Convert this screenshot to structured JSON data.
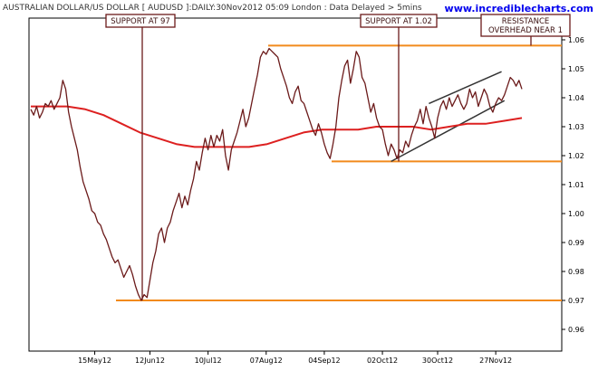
{
  "header": {
    "title": "AUSTRALIAN DOLLAR/US DOLLAR [ AUDUSD ]:DAILY:30Nov2012 05:09 London : Data Delayed > 5mins",
    "site": "www.incrediblecharts.com"
  },
  "chart_data": {
    "type": "line",
    "title": "AUSTRALIAN DOLLAR/US DOLLAR [ AUDUSD ]:DAILY:30Nov2012 05:09 London : Data Delayed > 5mins",
    "xlabel": "",
    "ylabel": "",
    "x_ticks": [
      "15May12",
      "12Jun12",
      "10Jul12",
      "07Aug12",
      "04Sep12",
      "02Oct12",
      "30Oct12",
      "27Nov12"
    ],
    "y_ticks": [
      "0.96",
      "0.97",
      "0.98",
      "0.99",
      "1.00",
      "1.01",
      "1.02",
      "1.03",
      "1.04",
      "1.05",
      "1.06"
    ],
    "ylim": [
      0.9525,
      1.0675
    ],
    "y_axis_position": "right",
    "grid": false,
    "colors": {
      "price": "#6b1a1a",
      "moving_average": "#dd2020",
      "support_resistance": "#f28a1c",
      "channel": "#333333",
      "annotation": "#6b1a1a"
    },
    "series": [
      {
        "name": "",
        "values": [
          1.036,
          1.034,
          1.037,
          1.033,
          1.035,
          1.038,
          1.037,
          1.039,
          1.036,
          1.038,
          1.04,
          1.046,
          1.043,
          1.035,
          1.03,
          1.026,
          1.022,
          1.016,
          1.011,
          1.008,
          1.005,
          1.001,
          1.0,
          0.997,
          0.996,
          0.993,
          0.991,
          0.988,
          0.985,
          0.983,
          0.984,
          0.981,
          0.978,
          0.98,
          0.982,
          0.979,
          0.975,
          0.972,
          0.97,
          0.972,
          0.971,
          0.977,
          0.983,
          0.987,
          0.993,
          0.995,
          0.99,
          0.995,
          0.997,
          1.001,
          1.004,
          1.007,
          1.002,
          1.006,
          1.003,
          1.008,
          1.012,
          1.018,
          1.015,
          1.021,
          1.026,
          1.022,
          1.027,
          1.023,
          1.027,
          1.025,
          1.029,
          1.02,
          1.015,
          1.022,
          1.025,
          1.028,
          1.032,
          1.036,
          1.03,
          1.033,
          1.038,
          1.043,
          1.048,
          1.054,
          1.056,
          1.055,
          1.057,
          1.056,
          1.055,
          1.054,
          1.05,
          1.047,
          1.044,
          1.04,
          1.038,
          1.042,
          1.044,
          1.039,
          1.038,
          1.035,
          1.032,
          1.029,
          1.027,
          1.031,
          1.028,
          1.024,
          1.021,
          1.019,
          1.024,
          1.03,
          1.04,
          1.046,
          1.051,
          1.053,
          1.045,
          1.05,
          1.056,
          1.054,
          1.047,
          1.045,
          1.04,
          1.035,
          1.038,
          1.033,
          1.03,
          1.029,
          1.024,
          1.02,
          1.024,
          1.022,
          1.019,
          1.022,
          1.021,
          1.025,
          1.023,
          1.027,
          1.03,
          1.032,
          1.036,
          1.031,
          1.037,
          1.033,
          1.03,
          1.026,
          1.033,
          1.037,
          1.039,
          1.036,
          1.04,
          1.037,
          1.039,
          1.041,
          1.038,
          1.036,
          1.038,
          1.043,
          1.04,
          1.042,
          1.037,
          1.04,
          1.043,
          1.041,
          1.037,
          1.035,
          1.038,
          1.04,
          1.039,
          1.041,
          1.044,
          1.047,
          1.046,
          1.044,
          1.046,
          1.043
        ]
      },
      {
        "name": "",
        "values": [
          1.037,
          1.037,
          1.037,
          1.036,
          1.034,
          1.031,
          1.028,
          1.026,
          1.024,
          1.023,
          1.023,
          1.023,
          1.023,
          1.024,
          1.026,
          1.028,
          1.029,
          1.029,
          1.029,
          1.03,
          1.03,
          1.03,
          1.029,
          1.03,
          1.031,
          1.031,
          1.032,
          1.033
        ]
      }
    ],
    "support_lines": [
      {
        "y": 0.97
      },
      {
        "y": 1.018
      },
      {
        "y": 1.058
      }
    ],
    "channel_lines": [
      {
        "from": [
          137,
          1.038
        ],
        "to": [
          162,
          1.049
        ]
      },
      {
        "from": [
          124,
          1.018
        ],
        "to": [
          163,
          1.039
        ]
      }
    ],
    "annotations": [
      {
        "text": "SUPPORT AT 97",
        "at_index": 38
      },
      {
        "text": "SUPPORT AT 1.02",
        "at_index": 124
      },
      {
        "lines": [
          "RESISTANCE",
          "OVERHEAD NEAR 1"
        ],
        "at_index": 162
      }
    ]
  }
}
